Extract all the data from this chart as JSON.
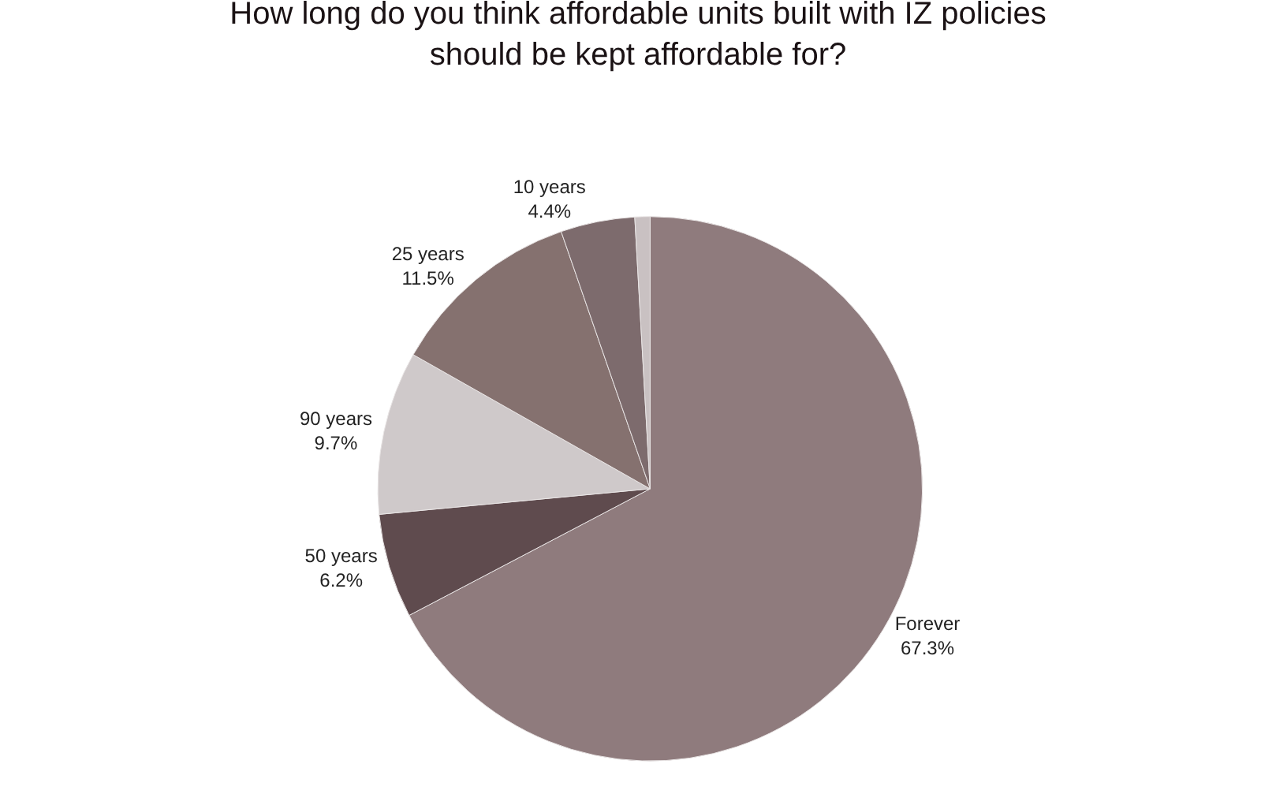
{
  "chart_data": {
    "type": "pie",
    "title": "How long do you think affordable units built with IZ policies\nshould be kept affordable for?",
    "categories": [
      "Forever",
      "50 years",
      "90 years",
      "25 years",
      "10 years",
      null
    ],
    "values": [
      67.3,
      6.2,
      9.7,
      11.5,
      4.4,
      0.9
    ],
    "value_labels": [
      "67.3%",
      "6.2%",
      "9.7%",
      "11.5%",
      "4.4%",
      null
    ],
    "colors": [
      "#8f7b7d",
      "#5f4b4e",
      "#cfc9ca",
      "#85716f",
      "#7d6b6d",
      "#c9c1c2"
    ],
    "legend": false
  }
}
